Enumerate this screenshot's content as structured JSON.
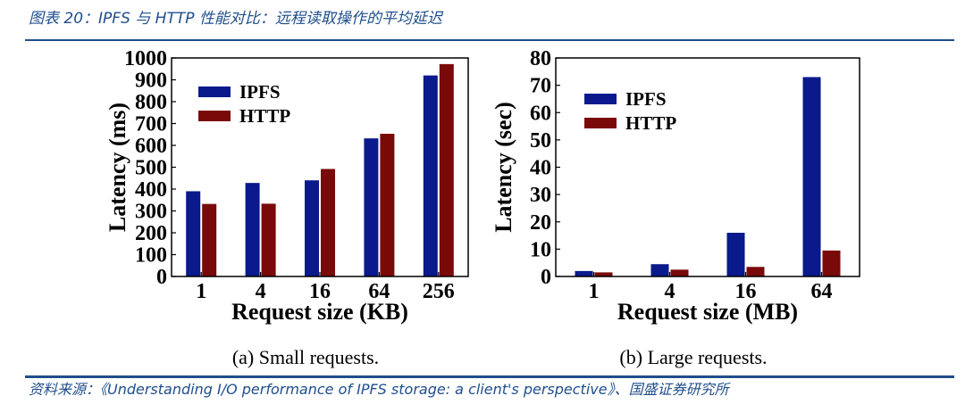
{
  "figure": {
    "title": "图表 20：IPFS 与 HTTP 性能对比：远程读取操作的平均延迟",
    "source": "资料来源：《Understanding I/O performance of IPFS storage: a client's perspective》、国盛证券研究所"
  },
  "colors": {
    "ipfs": "#0a1a8c",
    "http": "#7a0a0a"
  },
  "chart_data": [
    {
      "type": "bar",
      "caption": "(a)  Small requests.",
      "xlabel": "Request size (KB)",
      "ylabel": "Latency (ms)",
      "categories": [
        "1",
        "4",
        "16",
        "64",
        "256"
      ],
      "ylim": [
        0,
        1000
      ],
      "yticks": [
        0,
        100,
        200,
        300,
        400,
        500,
        600,
        700,
        800,
        900,
        1000
      ],
      "legend_position": "top-left",
      "grid": false,
      "series": [
        {
          "name": "IPFS",
          "values": [
            390,
            428,
            440,
            632,
            920
          ]
        },
        {
          "name": "HTTP",
          "values": [
            332,
            333,
            492,
            653,
            972
          ]
        }
      ]
    },
    {
      "type": "bar",
      "caption": "(b)  Large requests.",
      "xlabel": "Request size (MB)",
      "ylabel": "Latency (sec)",
      "categories": [
        "1",
        "4",
        "16",
        "64"
      ],
      "ylim": [
        0,
        80
      ],
      "yticks": [
        0,
        10,
        20,
        30,
        40,
        50,
        60,
        70,
        80
      ],
      "legend_position": "top-left",
      "grid": false,
      "series": [
        {
          "name": "IPFS",
          "values": [
            2,
            4.5,
            16,
            73
          ]
        },
        {
          "name": "HTTP",
          "values": [
            1.5,
            2.5,
            3.5,
            9.5
          ]
        }
      ]
    }
  ]
}
